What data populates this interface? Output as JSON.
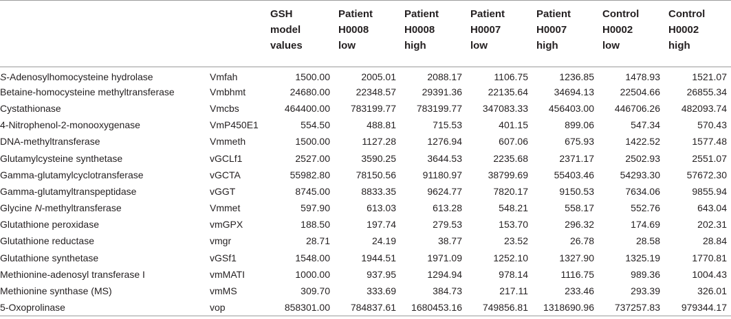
{
  "header": {
    "columns": [
      {
        "lines": [
          "GSH",
          "model",
          "values"
        ]
      },
      {
        "lines": [
          "Patient",
          "H0008",
          "low"
        ]
      },
      {
        "lines": [
          "Patient",
          "H0008",
          "high"
        ]
      },
      {
        "lines": [
          "Patient",
          "H0007",
          "low"
        ]
      },
      {
        "lines": [
          "Patient",
          "H0007",
          "high"
        ]
      },
      {
        "lines": [
          "Control",
          "H0002",
          "low"
        ]
      },
      {
        "lines": [
          "Control",
          "H0002",
          "high"
        ]
      }
    ]
  },
  "rows": [
    {
      "name_prefix": "S",
      "name_rest": "-Adenosylhomocysteine hydrolase",
      "param": "Vmfah",
      "values": [
        "1500.00",
        "2005.01",
        "2088.17",
        "1106.75",
        "1236.85",
        "1478.93",
        "1521.07"
      ]
    },
    {
      "name_prefix": "",
      "name_rest": "Betaine-homocysteine methyltransferase",
      "param": "Vmbhmt",
      "values": [
        "24680.00",
        "22348.57",
        "29391.36",
        "22135.64",
        "34694.13",
        "22504.66",
        "26855.34"
      ]
    },
    {
      "name_prefix": "",
      "name_rest": "Cystathionase",
      "param": "Vmcbs",
      "values": [
        "464400.00",
        "783199.77",
        "783199.77",
        "347083.33",
        "456403.00",
        "446706.26",
        "482093.74"
      ]
    },
    {
      "name_prefix": "",
      "name_rest": "4-Nitrophenol-2-monooxygenase",
      "param": "VmP450E1",
      "values": [
        "554.50",
        "488.81",
        "715.53",
        "401.15",
        "899.06",
        "547.34",
        "570.43"
      ]
    },
    {
      "name_prefix": "",
      "name_rest": "DNA-methyltransferase",
      "param": "Vmmeth",
      "values": [
        "1500.00",
        "1127.28",
        "1276.94",
        "607.06",
        "675.93",
        "1422.52",
        "1577.48"
      ]
    },
    {
      "name_prefix": "",
      "name_rest": "Glutamylcysteine synthetase",
      "param": "vGCLf1",
      "values": [
        "2527.00",
        "3590.25",
        "3644.53",
        "2235.68",
        "2371.17",
        "2502.93",
        "2551.07"
      ]
    },
    {
      "name_prefix": "",
      "name_rest": "Gamma-glutamylcyclotransferase",
      "param": "vGCTA",
      "values": [
        "55982.80",
        "78150.56",
        "91180.97",
        "38799.69",
        "55403.46",
        "54293.30",
        "57672.30"
      ]
    },
    {
      "name_prefix": "",
      "name_rest": "Gamma-glutamyltranspeptidase",
      "param": "vGGT",
      "values": [
        "8745.00",
        "8833.35",
        "9624.77",
        "7820.17",
        "9150.53",
        "7634.06",
        "9855.94"
      ]
    },
    {
      "name_prefix": "",
      "name_rest": "Glycine ",
      "name_ital": "N",
      "name_tail": "-methyltransferase",
      "param": "Vmmet",
      "values": [
        "597.90",
        "613.03",
        "613.28",
        "548.21",
        "558.17",
        "552.76",
        "643.04"
      ]
    },
    {
      "name_prefix": "",
      "name_rest": "Glutathione peroxidase",
      "param": "vmGPX",
      "values": [
        "188.50",
        "197.74",
        "279.53",
        "153.70",
        "296.32",
        "174.69",
        "202.31"
      ]
    },
    {
      "name_prefix": "",
      "name_rest": "Glutathione reductase",
      "param": "vmgr",
      "values": [
        "28.71",
        "24.19",
        "38.77",
        "23.52",
        "26.78",
        "28.58",
        "28.84"
      ]
    },
    {
      "name_prefix": "",
      "name_rest": "Glutathione synthetase",
      "param": "vGSf1",
      "values": [
        "1548.00",
        "1944.51",
        "1971.09",
        "1252.10",
        "1327.90",
        "1325.19",
        "1770.81"
      ]
    },
    {
      "name_prefix": "",
      "name_rest": "Methionine-adenosyl transferase I",
      "param": "vmMATI",
      "values": [
        "1000.00",
        "937.95",
        "1294.94",
        "978.14",
        "1116.75",
        "989.36",
        "1004.43"
      ]
    },
    {
      "name_prefix": "",
      "name_rest": "Methionine synthase (MS)",
      "param": "vmMS",
      "values": [
        "309.70",
        "333.69",
        "384.73",
        "217.11",
        "233.46",
        "293.39",
        "326.01"
      ]
    },
    {
      "name_prefix": "",
      "name_rest": "5-Oxoprolinase",
      "param": "vop",
      "values": [
        "858301.00",
        "784837.61",
        "1680453.16",
        "749856.81",
        "1318690.96",
        "737257.83",
        "979344.17"
      ]
    }
  ]
}
